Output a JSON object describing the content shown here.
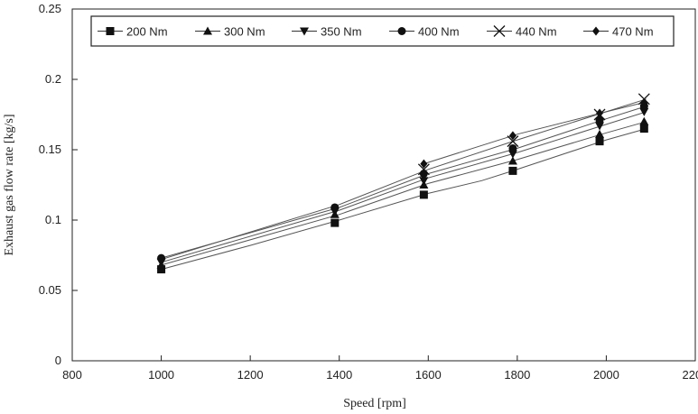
{
  "chart_data": {
    "type": "line",
    "xlabel": "Speed [rpm]",
    "ylabel": "Exhaust gas flow rate  [kg/s]",
    "xlim": [
      800,
      2200
    ],
    "ylim": [
      0,
      0.25
    ],
    "xticks": [
      800,
      1000,
      1200,
      1400,
      1600,
      1800,
      2000,
      2200
    ],
    "yticks": [
      0,
      0.05,
      0.1,
      0.15,
      0.2,
      0.25
    ],
    "xtick_labels": [
      "800",
      "1000",
      "1200",
      "1400",
      "1600",
      "1800",
      "2000",
      "2200"
    ],
    "ytick_labels": [
      "0",
      "0.05",
      "0.1",
      "0.15",
      "0.2",
      "0.25"
    ],
    "grid": false,
    "legend_position": "top",
    "series": [
      {
        "name": "200 Nm",
        "marker": "square",
        "line_x": [
          1000,
          1200,
          1400,
          1600,
          1720,
          1790,
          2000,
          2090
        ],
        "line_y": [
          0.065,
          0.082,
          0.1,
          0.119,
          0.128,
          0.135,
          0.157,
          0.165
        ],
        "marker_x": [
          1000,
          1390,
          1590,
          1790,
          1985,
          2085
        ],
        "marker_y": [
          0.065,
          0.098,
          0.118,
          0.135,
          0.156,
          0.165
        ]
      },
      {
        "name": "300 Nm",
        "marker": "triangle-up",
        "line_x": [
          1000,
          1400,
          1600,
          1800,
          2000,
          2090
        ],
        "line_y": [
          0.068,
          0.104,
          0.126,
          0.143,
          0.162,
          0.17
        ],
        "marker_x": [
          1000,
          1390,
          1590,
          1790,
          1985,
          2085
        ],
        "marker_y": [
          0.068,
          0.104,
          0.125,
          0.142,
          0.161,
          0.17
        ]
      },
      {
        "name": "350 Nm",
        "marker": "triangle-down",
        "line_x": [
          1000,
          1400,
          1600,
          1800,
          2000,
          2090
        ],
        "line_y": [
          0.07,
          0.107,
          0.13,
          0.148,
          0.168,
          0.177
        ],
        "marker_x": [
          1000,
          1390,
          1590,
          1790,
          1985,
          2085
        ],
        "marker_y": [
          0.07,
          0.106,
          0.128,
          0.147,
          0.167,
          0.177
        ]
      },
      {
        "name": "400 Nm",
        "marker": "circle",
        "line_x": [
          1000,
          1400,
          1600,
          1800,
          2000,
          2090
        ],
        "line_y": [
          0.073,
          0.109,
          0.133,
          0.151,
          0.172,
          0.181
        ],
        "marker_x": [
          1000,
          1390,
          1590,
          1790,
          1985,
          2085
        ],
        "marker_y": [
          0.073,
          0.109,
          0.133,
          0.151,
          0.171,
          0.181
        ]
      },
      {
        "name": "440 Nm",
        "marker": "x",
        "line_x": [
          1000,
          1400,
          1600,
          1800,
          2000,
          2090
        ],
        "line_y": [
          0.072,
          0.111,
          0.136,
          0.157,
          0.177,
          0.186
        ],
        "marker_x": [
          1590,
          1790,
          1985,
          2085
        ],
        "marker_y": [
          0.136,
          0.156,
          0.175,
          0.186
        ]
      },
      {
        "name": "470 Nm",
        "marker": "diamond",
        "line_x": [
          1590,
          1800,
          2000,
          2090
        ],
        "line_y": [
          0.14,
          0.161,
          0.177,
          0.184
        ],
        "marker_x": [
          1590,
          1790,
          1985,
          2085
        ],
        "marker_y": [
          0.14,
          0.16,
          0.176,
          0.183
        ]
      }
    ]
  }
}
